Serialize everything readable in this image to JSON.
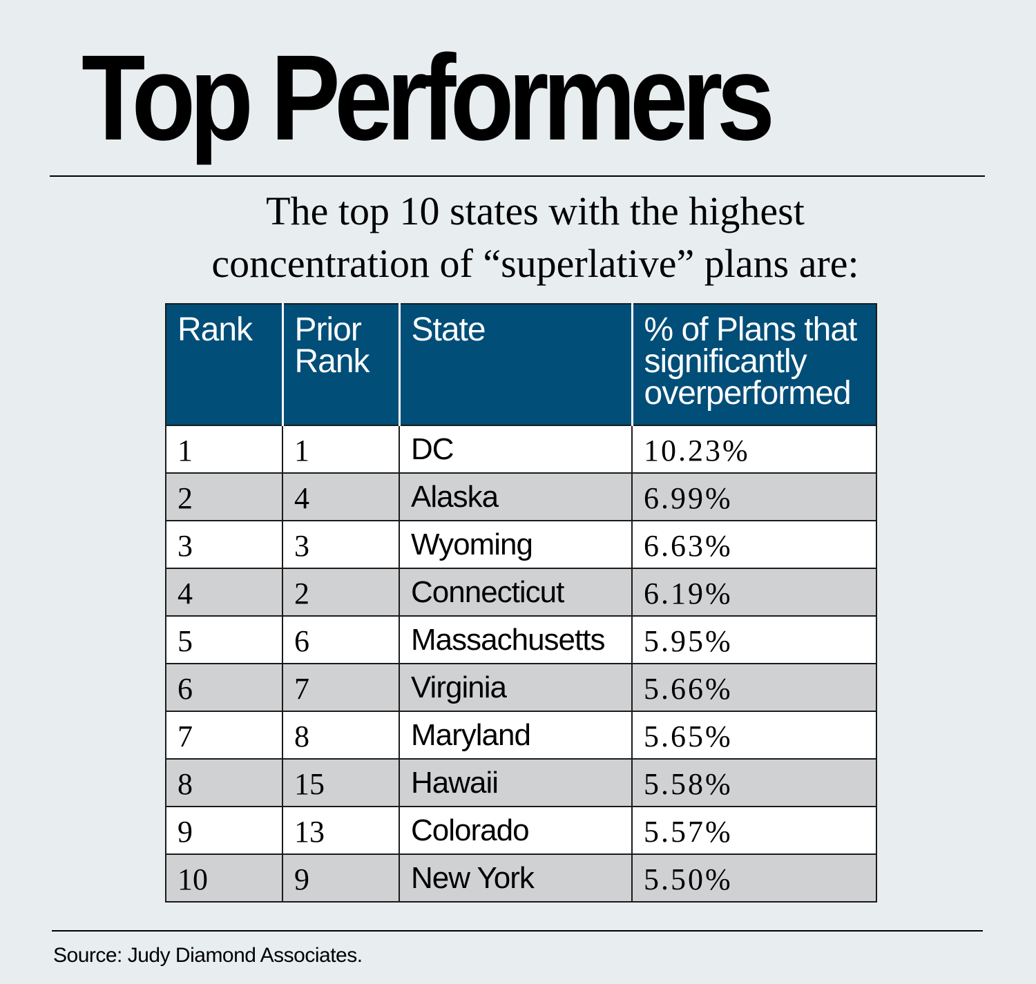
{
  "title": "Top Performers",
  "subtitle_lines": [
    "The top 10 states with the highest",
    "concentration of “superlative” plans are:"
  ],
  "colors": {
    "background": "#e8edf0",
    "header_fill": "#014e78",
    "row_alt_fill": "#d0d1d3"
  },
  "chart_data": {
    "type": "table",
    "columns": [
      "Rank",
      "Prior Rank",
      "State",
      "% of Plans that significantly overperformed"
    ],
    "rows": [
      [
        "1",
        "1",
        "DC",
        "10.23%"
      ],
      [
        "2",
        "4",
        "Alaska",
        "6.99%"
      ],
      [
        "3",
        "3",
        "Wyoming",
        "6.63%"
      ],
      [
        "4",
        "2",
        "Connecticut",
        "6.19%"
      ],
      [
        "5",
        "6",
        "Massachusetts",
        "5.95%"
      ],
      [
        "6",
        "7",
        "Virginia",
        "5.66%"
      ],
      [
        "7",
        "8",
        "Maryland",
        "5.65%"
      ],
      [
        "8",
        "15",
        "Hawaii",
        "5.58%"
      ],
      [
        "9",
        "13",
        "Colorado",
        "5.57%"
      ],
      [
        "10",
        "9",
        "New York",
        "5.50%"
      ]
    ]
  },
  "source": "Source: Judy Diamond Associates."
}
